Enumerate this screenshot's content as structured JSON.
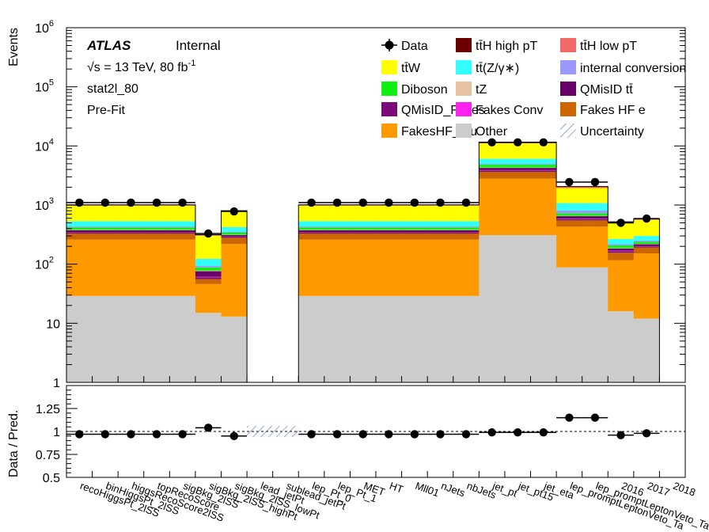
{
  "chart_data": [
    {
      "type": "bar",
      "stacked": true,
      "scale": "log",
      "ylabel": "Events",
      "ylim": [
        1,
        1000000
      ],
      "yticks": [
        {
          "v": 1,
          "label": "1"
        },
        {
          "v": 10,
          "label": "10"
        },
        {
          "v": 100,
          "label": "10",
          "exp": "2"
        },
        {
          "v": 1000,
          "label": "10",
          "exp": "3"
        },
        {
          "v": 10000,
          "label": "10",
          "exp": "4"
        },
        {
          "v": 100000,
          "label": "10",
          "exp": "5"
        },
        {
          "v": 1000000,
          "label": "10",
          "exp": "6"
        }
      ],
      "annotations": {
        "experiment": "ATLAS",
        "status": "Internal",
        "energy": "√s = 13 TeV, 80 fb",
        "energy_exp": "-1",
        "region": "stat2l_80",
        "fit": "Pre-Fit"
      },
      "categories": [
        "recoHiggsPt_2lSS",
        "binHiggsPt_2lSS",
        "higgsRecoScore2lSS",
        "topRecoScore",
        "sigBkg_2lSS",
        "sigBkg_2lSS_highPt",
        "sigBkg_2lSS_lowPt",
        "lead_jetPt",
        "sublead_jetPt",
        "lep_Pt_0",
        "lep_Pt_1",
        "MET",
        "HT",
        "Mll01",
        "nJets",
        "nbJets",
        "jet_pt",
        "jet_pt15",
        "jet_eta",
        "lep_promptLeptonVeto_Ta",
        "lep_promptLeptonVeto_Ta",
        "2016",
        "2017",
        "2018"
      ],
      "data": [
        1100,
        1100,
        1100,
        1100,
        1100,
        330,
        780,
        null,
        null,
        1100,
        1100,
        1100,
        1100,
        1100,
        1100,
        1100,
        11500,
        11500,
        11500,
        2450,
        2450,
        500,
        590,
        null
      ],
      "legend": [
        {
          "label": "Data",
          "type": "marker"
        },
        {
          "label": "tt̄H high pT",
          "color": "#6b0000"
        },
        {
          "label": "tt̄H low pT",
          "color": "#f26868"
        },
        {
          "label": "tt̄W",
          "color": "#ffff00"
        },
        {
          "label": "tt̄(Z/γ∗)",
          "color": "#33ffff"
        },
        {
          "label": "internal conversion",
          "color": "#9999ff"
        },
        {
          "label": "Diboson",
          "color": "#11ee11"
        },
        {
          "label": "tZ",
          "color": "#e6c29e"
        },
        {
          "label": "QMisID tt̄",
          "color": "#660066"
        },
        {
          "label": "QMisID_Fakes",
          "color": "#7a0a7a"
        },
        {
          "label": "Fakes Conv",
          "color": "#ff22ee"
        },
        {
          "label": "Fakes HF e",
          "color": "#cc6600"
        },
        {
          "label": "FakesHF_mu",
          "color": "#ff9900"
        },
        {
          "label": "Other",
          "color": "#cccccc"
        },
        {
          "label": "Uncertainty",
          "type": "hatch"
        }
      ],
      "series": [
        {
          "name": "Other",
          "color": "#cccccc",
          "values": [
            29,
            29,
            29,
            29,
            29,
            15,
            13,
            0,
            0,
            29,
            29,
            29,
            29,
            29,
            29,
            29,
            310,
            310,
            310,
            88,
            88,
            16,
            12,
            0
          ]
        },
        {
          "name": "FakesHF_mu",
          "color": "#ff9900",
          "values": [
            231,
            231,
            231,
            231,
            231,
            31,
            207,
            0,
            0,
            231,
            231,
            231,
            231,
            231,
            231,
            231,
            2490,
            2490,
            2490,
            342,
            342,
            100,
            140,
            0
          ]
        },
        {
          "name": "Fakes HF e",
          "color": "#cc6600",
          "values": [
            70,
            70,
            70,
            70,
            70,
            10,
            60,
            0,
            0,
            70,
            70,
            70,
            70,
            70,
            70,
            70,
            850,
            850,
            850,
            120,
            120,
            40,
            40,
            0
          ]
        },
        {
          "name": "QMisID_Fakes",
          "color": "#7a0a7a",
          "values": [
            15,
            15,
            15,
            15,
            15,
            4,
            12,
            0,
            0,
            15,
            15,
            15,
            15,
            15,
            15,
            15,
            200,
            200,
            200,
            30,
            30,
            10,
            8,
            0
          ]
        },
        {
          "name": "Fakes Conv",
          "color": "#ff22ee",
          "values": [
            4,
            4,
            4,
            4,
            4,
            1,
            3,
            0,
            0,
            4,
            4,
            4,
            4,
            4,
            4,
            4,
            50,
            50,
            50,
            8,
            8,
            3,
            2,
            0
          ]
        },
        {
          "name": "QMisID tt̄",
          "color": "#660066",
          "values": [
            25,
            25,
            25,
            25,
            25,
            15,
            15,
            0,
            0,
            25,
            25,
            25,
            25,
            25,
            25,
            25,
            350,
            350,
            350,
            60,
            60,
            15,
            15,
            0
          ]
        },
        {
          "name": "tZ",
          "color": "#e6c29e",
          "values": [
            5,
            5,
            5,
            5,
            5,
            2,
            4,
            0,
            0,
            5,
            5,
            5,
            5,
            5,
            5,
            5,
            60,
            60,
            60,
            10,
            10,
            3,
            3,
            0
          ]
        },
        {
          "name": "Diboson",
          "color": "#11ee11",
          "values": [
            40,
            40,
            40,
            40,
            40,
            10,
            30,
            0,
            0,
            40,
            40,
            40,
            40,
            40,
            40,
            40,
            500,
            500,
            500,
            70,
            70,
            20,
            20,
            0
          ]
        },
        {
          "name": "internal conversion",
          "color": "#9999ff",
          "values": [
            15,
            15,
            15,
            15,
            15,
            5,
            10,
            0,
            0,
            15,
            15,
            15,
            15,
            15,
            15,
            15,
            150,
            150,
            150,
            80,
            80,
            10,
            10,
            0
          ]
        },
        {
          "name": "tt̄(Z/γ∗)",
          "color": "#33ffff",
          "values": [
            100,
            100,
            100,
            100,
            100,
            30,
            70,
            0,
            0,
            100,
            100,
            100,
            100,
            100,
            100,
            100,
            1100,
            1100,
            1100,
            270,
            270,
            50,
            50,
            0
          ]
        },
        {
          "name": "tt̄W",
          "color": "#ffff00",
          "values": [
            440,
            440,
            440,
            440,
            440,
            180,
            350,
            0,
            0,
            440,
            440,
            440,
            440,
            440,
            440,
            440,
            5000,
            5000,
            5000,
            860,
            860,
            230,
            260,
            0
          ]
        },
        {
          "name": "tt̄H low pT",
          "color": "#f26868",
          "values": [
            30,
            30,
            30,
            30,
            30,
            10,
            25,
            0,
            0,
            30,
            30,
            30,
            30,
            30,
            30,
            30,
            500,
            500,
            500,
            100,
            100,
            20,
            20,
            0
          ]
        },
        {
          "name": "tt̄H high pT",
          "color": "#6b0000",
          "values": [
            5,
            5,
            5,
            5,
            5,
            2,
            4,
            0,
            0,
            5,
            5,
            5,
            5,
            5,
            5,
            5,
            60,
            60,
            60,
            15,
            15,
            4,
            4,
            0
          ]
        }
      ]
    },
    {
      "type": "scatter",
      "ylabel": "Data / Pred.",
      "ylim": [
        0.5,
        1.5
      ],
      "yticks": [
        {
          "v": 0.5,
          "label": "0.5"
        },
        {
          "v": 0.75,
          "label": "0.75"
        },
        {
          "v": 1,
          "label": "1"
        },
        {
          "v": 1.25,
          "label": "1.25"
        }
      ],
      "values": [
        0.97,
        0.97,
        0.97,
        0.97,
        0.97,
        1.04,
        0.95,
        null,
        null,
        0.97,
        0.97,
        0.97,
        0.97,
        0.97,
        0.97,
        0.97,
        0.99,
        0.99,
        0.99,
        1.15,
        1.15,
        0.96,
        0.98,
        null
      ]
    }
  ]
}
